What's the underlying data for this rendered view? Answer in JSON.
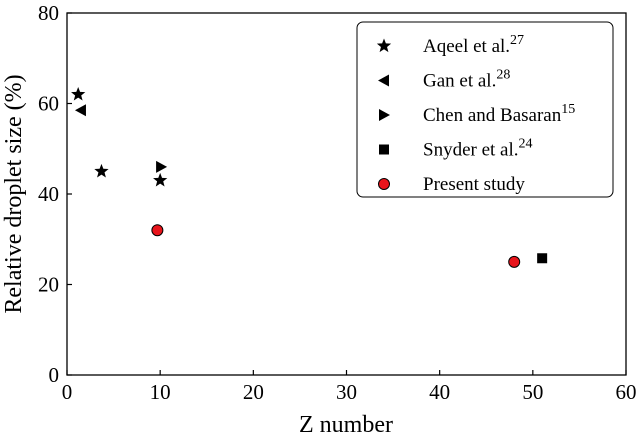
{
  "chart_data": {
    "type": "scatter",
    "xlabel": "Z number",
    "ylabel": "Relative droplet size (%)",
    "xlim": [
      0,
      60
    ],
    "ylim": [
      0,
      80
    ],
    "xticks": [
      "0",
      "10",
      "20",
      "30",
      "40",
      "50",
      "60"
    ],
    "yticks": [
      "0",
      "20",
      "40",
      "60",
      "80"
    ],
    "grid": false,
    "legend_position": "top-right",
    "series": [
      {
        "name": "Aqeel et al.",
        "ref": "27",
        "marker": "star",
        "color": "#000000",
        "points": [
          {
            "x": 1.2,
            "y": 62
          },
          {
            "x": 3.7,
            "y": 45
          },
          {
            "x": 10.0,
            "y": 43
          }
        ]
      },
      {
        "name": "Gan et al.",
        "ref": "28",
        "marker": "triangle-left",
        "color": "#000000",
        "points": [
          {
            "x": 1.5,
            "y": 58.5
          }
        ]
      },
      {
        "name": "Chen and Basaran",
        "ref": "15",
        "marker": "triangle-right",
        "color": "#000000",
        "points": [
          {
            "x": 10.1,
            "y": 46
          }
        ]
      },
      {
        "name": "Snyder et al.",
        "ref": "24",
        "marker": "square",
        "color": "#000000",
        "points": [
          {
            "x": 51.0,
            "y": 25.8
          }
        ]
      },
      {
        "name": "Present study",
        "ref": "",
        "marker": "circle",
        "color": "#e8141b",
        "edge_color": "#000000",
        "points": [
          {
            "x": 9.7,
            "y": 32
          },
          {
            "x": 48.0,
            "y": 25
          }
        ]
      }
    ]
  }
}
